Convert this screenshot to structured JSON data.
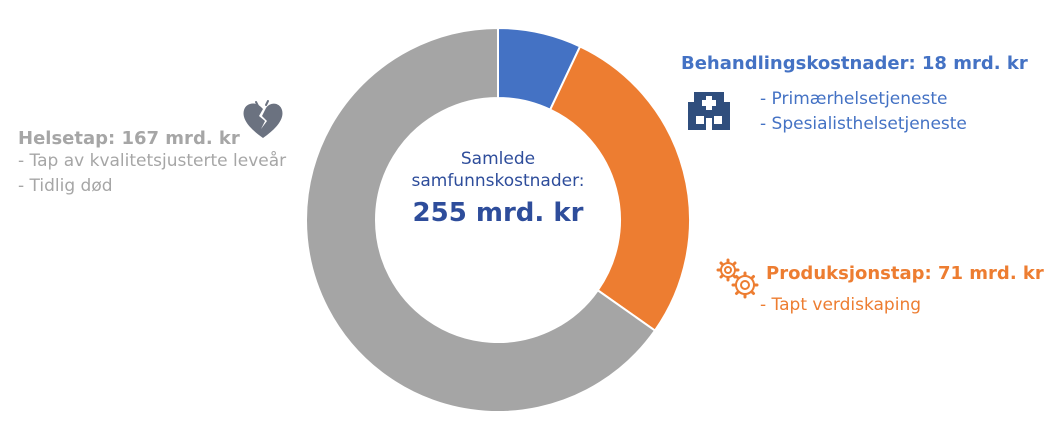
{
  "chart_data": {
    "type": "pie",
    "categories": [
      "Behandlingskostnader",
      "Produksjonstap",
      "Helsetap"
    ],
    "values": [
      18,
      71,
      167
    ],
    "colors": [
      "#4472c4",
      "#ed7d31",
      "#a5a5a5"
    ],
    "center_label": "Samlede samfunnskostnader:",
    "center_value": "255 mrd. kr"
  },
  "groups": {
    "treatment": {
      "title": "Behandlingskostnader: 18 mrd. kr",
      "items": [
        "- Primærhelsetjeneste",
        "- Spesialisthelsetjeneste"
      ],
      "icon": "hospital-icon"
    },
    "production": {
      "title": "Produksjonstap: 71 mrd. kr",
      "items": [
        "- Tapt verdiskaping"
      ],
      "icon": "gears-icon"
    },
    "health": {
      "title": "Helsetap: 167 mrd. kr",
      "items": [
        "- Tap av kvalitetsjusterte leveår",
        "- Tidlig død"
      ],
      "icon": "broken-heart-icon"
    }
  }
}
